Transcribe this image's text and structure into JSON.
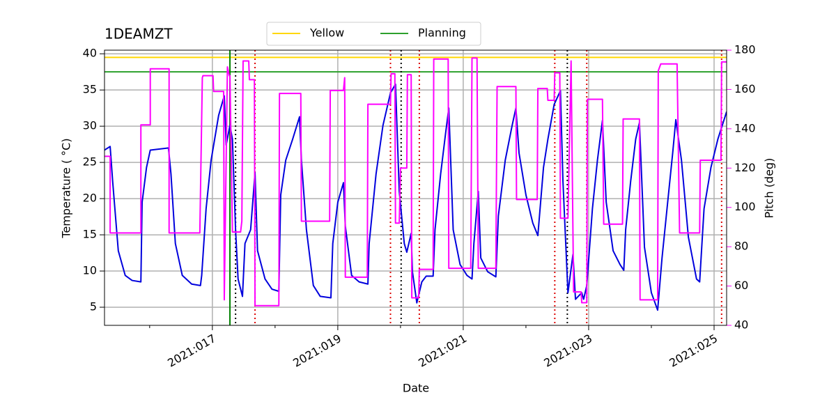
{
  "chart_data": {
    "type": "line",
    "title": "1DEAMZT",
    "xlabel": "Date",
    "ylabel": "Temperature ( °C)",
    "y2label": "Pitch (deg)",
    "y2color": "#ff00ff",
    "xlim": [
      15.28,
      25.2
    ],
    "xticks": [
      {
        "value": 17,
        "label": "2021:017"
      },
      {
        "value": 19,
        "label": "2021:019"
      },
      {
        "value": 21,
        "label": "2021:021"
      },
      {
        "value": 23,
        "label": "2021:023"
      },
      {
        "value": 25,
        "label": "2021:025"
      }
    ],
    "xminorticks": [
      16,
      18,
      20,
      22,
      24
    ],
    "ylim": [
      2.5,
      40.5
    ],
    "yticks": [
      5,
      10,
      15,
      20,
      25,
      30,
      35,
      40
    ],
    "y2lim": [
      40,
      180
    ],
    "y2ticks": [
      40,
      60,
      80,
      100,
      120,
      140,
      160,
      180
    ],
    "grid": true,
    "legend": "top",
    "hlines": [
      {
        "name": "Yellow",
        "color": "#ffd700",
        "value": 39.5
      },
      {
        "name": "Planning",
        "color": "#2ca02c",
        "value": 37.5
      }
    ],
    "vlines": [
      {
        "x": 17.28,
        "color": "#008000",
        "style": "solid"
      },
      {
        "x": 17.37,
        "color": "#000000",
        "style": "dotted"
      },
      {
        "x": 20.01,
        "color": "#000000",
        "style": "dotted"
      },
      {
        "x": 22.66,
        "color": "#000000",
        "style": "dotted"
      },
      {
        "x": 17.68,
        "color": "#dd0000",
        "style": "dotted"
      },
      {
        "x": 19.84,
        "color": "#dd0000",
        "style": "dotted"
      },
      {
        "x": 20.3,
        "color": "#dd0000",
        "style": "dotted"
      },
      {
        "x": 22.46,
        "color": "#dd0000",
        "style": "dotted"
      },
      {
        "x": 22.97,
        "color": "#dd0000",
        "style": "dotted"
      },
      {
        "x": 25.12,
        "color": "#dd0000",
        "style": "dotted"
      }
    ],
    "series": [
      {
        "color": "#0000dd",
        "x": [
          15.28,
          15.37,
          15.41,
          15.5,
          15.61,
          15.72,
          15.86,
          15.88,
          15.95,
          16.01,
          16.3,
          16.34,
          16.41,
          16.52,
          16.67,
          16.81,
          16.83,
          16.9,
          16.98,
          17.04,
          17.1,
          17.19,
          17.22,
          17.28,
          17.32,
          17.37,
          17.41,
          17.48,
          17.52,
          17.61,
          17.68,
          17.72,
          17.84,
          17.95,
          18.06,
          18.09,
          18.17,
          18.28,
          18.39,
          18.42,
          18.5,
          18.61,
          18.72,
          18.89,
          18.92,
          19.0,
          19.09,
          19.12,
          19.22,
          19.34,
          19.48,
          19.5,
          19.61,
          19.72,
          19.84,
          19.92,
          19.98,
          20.06,
          20.1,
          20.17,
          20.19,
          20.26,
          20.34,
          20.41,
          20.52,
          20.55,
          20.64,
          20.72,
          20.77,
          20.84,
          20.95,
          21.06,
          21.14,
          21.17,
          21.24,
          21.28,
          21.39,
          21.52,
          21.56,
          21.67,
          21.78,
          21.84,
          21.89,
          22.0,
          22.11,
          22.19,
          22.28,
          22.35,
          22.45,
          22.55,
          22.59,
          22.67,
          22.75,
          22.79,
          22.89,
          22.92,
          22.97,
          23.06,
          23.14,
          23.22,
          23.28,
          23.39,
          23.5,
          23.56,
          23.59,
          23.67,
          23.75,
          23.81,
          23.89,
          24.0,
          24.1,
          24.17,
          24.26,
          24.34,
          24.39,
          24.48,
          24.59,
          24.72,
          24.77,
          24.84,
          24.95,
          25.06,
          25.2
        ],
        "values": [
          26.7,
          27.2,
          22.4,
          12.8,
          9.4,
          8.7,
          8.5,
          19.5,
          24.3,
          26.7,
          27.0,
          23.4,
          13.8,
          9.4,
          8.2,
          8.0,
          9.4,
          18.6,
          25.3,
          28.4,
          31.5,
          34.2,
          27.4,
          30.1,
          28.2,
          15.7,
          8.9,
          6.5,
          13.8,
          15.7,
          23.6,
          12.8,
          8.9,
          7.5,
          7.2,
          20.5,
          25.3,
          28.2,
          31.3,
          25.3,
          15.7,
          8.0,
          6.5,
          6.3,
          13.8,
          19.5,
          22.2,
          16.2,
          9.4,
          8.5,
          8.2,
          13.8,
          23.4,
          30.1,
          34.6,
          35.8,
          21.0,
          13.8,
          12.6,
          15.2,
          9.9,
          5.6,
          8.5,
          9.3,
          9.3,
          15.7,
          23.4,
          29.1,
          32.5,
          15.7,
          10.9,
          9.4,
          8.9,
          13.8,
          21.0,
          11.8,
          9.9,
          9.2,
          17.6,
          25.3,
          30.1,
          32.5,
          26.3,
          20.5,
          16.6,
          14.9,
          24.3,
          28.2,
          33.0,
          34.9,
          22.4,
          7.0,
          12.3,
          6.1,
          7.0,
          6.1,
          8.0,
          18.6,
          25.3,
          30.8,
          19.5,
          12.8,
          10.9,
          10.1,
          15.7,
          22.4,
          28.2,
          30.5,
          13.3,
          7.0,
          4.6,
          11.8,
          19.5,
          26.3,
          30.9,
          25.3,
          14.7,
          8.9,
          8.5,
          18.6,
          24.3,
          28.2,
          32.0
        ]
      },
      {
        "color": "#ff00ff",
        "axis": "y2",
        "x": [
          15.28,
          15.37,
          15.37,
          15.86,
          15.86,
          16.01,
          16.01,
          16.31,
          16.31,
          16.8,
          16.84,
          16.85,
          17.01,
          17.02,
          17.18,
          17.19,
          17.24,
          17.27,
          17.28,
          17.32,
          17.45,
          17.47,
          17.49,
          17.58,
          17.59,
          17.67,
          17.68,
          18.06,
          18.07,
          18.41,
          18.42,
          18.87,
          18.88,
          19.09,
          19.11,
          19.12,
          19.47,
          19.48,
          19.84,
          19.85,
          19.91,
          19.92,
          19.98,
          20.0,
          20.1,
          20.11,
          20.17,
          20.18,
          20.29,
          20.3,
          20.52,
          20.53,
          20.76,
          20.77,
          21.12,
          21.14,
          21.22,
          21.24,
          21.52,
          21.54,
          21.84,
          21.85,
          22.18,
          22.19,
          22.34,
          22.35,
          22.45,
          22.46,
          22.54,
          22.55,
          22.67,
          22.72,
          22.76,
          22.88,
          22.89,
          22.97,
          22.98,
          23.22,
          23.24,
          23.54,
          23.55,
          23.81,
          23.82,
          24.1,
          24.11,
          24.15,
          24.41,
          24.45,
          24.77,
          24.78,
          25.11,
          25.12,
          25.2
        ],
        "values": [
          126,
          126,
          87,
          87,
          142,
          142,
          170.5,
          170.5,
          87,
          87,
          166,
          167,
          167,
          159,
          159,
          53,
          171.5,
          167,
          167,
          87.5,
          87.5,
          93,
          174.5,
          174.5,
          165,
          165,
          50,
          50,
          158,
          158,
          93,
          93,
          159.5,
          159.5,
          166,
          64.5,
          64.5,
          152.5,
          152.5,
          168,
          168,
          92,
          92,
          120,
          120,
          167.5,
          167.5,
          54,
          54,
          68.5,
          68.5,
          175.5,
          175.5,
          69,
          69,
          176,
          176,
          69,
          69,
          161.5,
          161.5,
          104,
          104,
          160.5,
          160.5,
          154.5,
          154.5,
          168.5,
          168.5,
          94.5,
          94.5,
          174.5,
          57,
          57,
          51.5,
          51.5,
          155,
          155,
          91.5,
          91.5,
          145,
          145,
          53,
          53,
          169.5,
          173,
          173,
          87,
          87,
          124,
          124,
          174,
          174
        ]
      }
    ]
  }
}
